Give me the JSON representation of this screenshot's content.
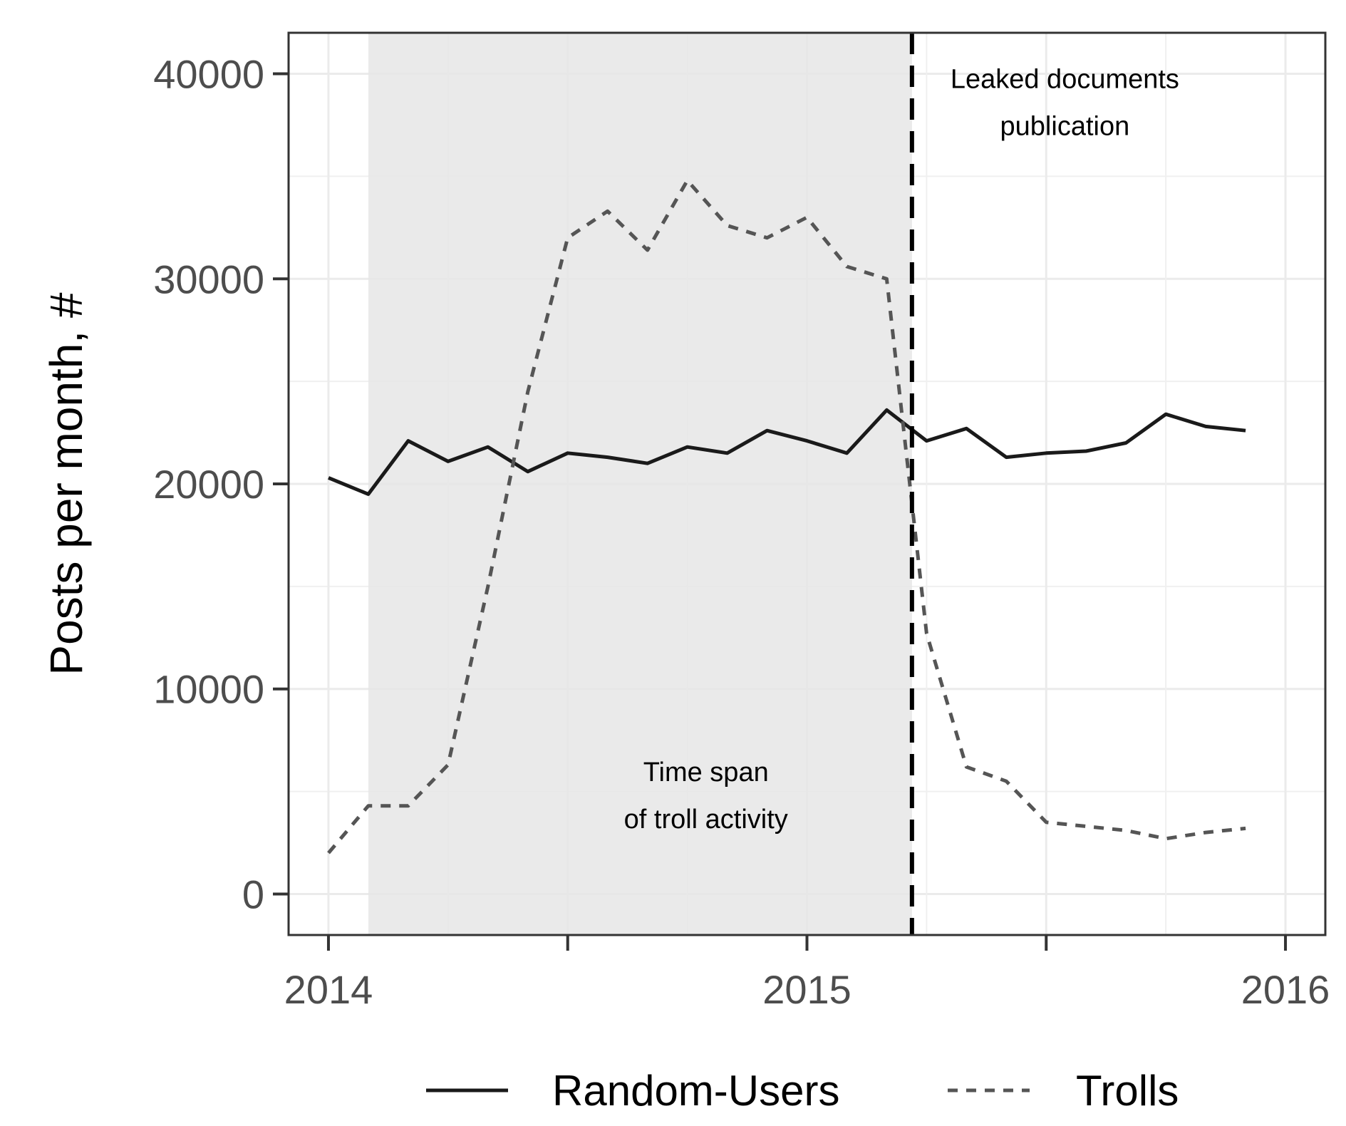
{
  "chart_data": {
    "type": "line",
    "title": "",
    "xlabel": "",
    "ylabel": "Posts per month, #",
    "xlim": [
      "2013-12",
      "2016-02"
    ],
    "ylim": [
      -2000,
      42000
    ],
    "x_ticks": [
      {
        "date": "2014-01",
        "label": "2014"
      },
      {
        "date": "2014-07",
        "label": ""
      },
      {
        "date": "2015-01",
        "label": "2015"
      },
      {
        "date": "2015-07",
        "label": ""
      },
      {
        "date": "2016-01",
        "label": "2016"
      }
    ],
    "y_ticks": [
      0,
      10000,
      20000,
      30000,
      40000
    ],
    "grid": true,
    "legend_position": "bottom",
    "x": [
      "2014-01",
      "2014-02",
      "2014-03",
      "2014-04",
      "2014-05",
      "2014-06",
      "2014-07",
      "2014-08",
      "2014-09",
      "2014-10",
      "2014-11",
      "2014-12",
      "2015-01",
      "2015-02",
      "2015-03",
      "2015-04",
      "2015-05",
      "2015-06",
      "2015-07",
      "2015-08",
      "2015-09",
      "2015-10",
      "2015-11",
      "2015-12"
    ],
    "series": [
      {
        "name": "Random-Users",
        "line_style": "solid",
        "color": "#1a1a1a",
        "values": [
          20300,
          19500,
          22100,
          21100,
          21800,
          20600,
          21500,
          21300,
          21000,
          21800,
          21500,
          22600,
          22100,
          21500,
          23600,
          22100,
          22700,
          21300,
          21500,
          21600,
          22000,
          23400,
          22800,
          22600
        ]
      },
      {
        "name": "Trolls",
        "line_style": "dashed",
        "color": "#555555",
        "values": [
          2000,
          4300,
          4300,
          6300,
          15000,
          24500,
          32000,
          33300,
          31400,
          34800,
          32600,
          32000,
          33000,
          30600,
          30000,
          12700,
          6200,
          5500,
          3500,
          3300,
          3100,
          2700,
          3000,
          3200
        ]
      }
    ],
    "shaded_region": {
      "start": "2014-02-01",
      "end": "2015-03-20",
      "color": "#e6e6e6"
    },
    "vertical_line": {
      "date": "2015-03-20",
      "style": "dashed"
    },
    "annotations": [
      {
        "lines": [
          "Time span",
          "of troll activity"
        ],
        "x": "2014-10-15",
        "y": 5500
      },
      {
        "lines": [
          "Leaked documents",
          "publication"
        ],
        "x": "2015-07-15",
        "y": 39300
      }
    ]
  }
}
